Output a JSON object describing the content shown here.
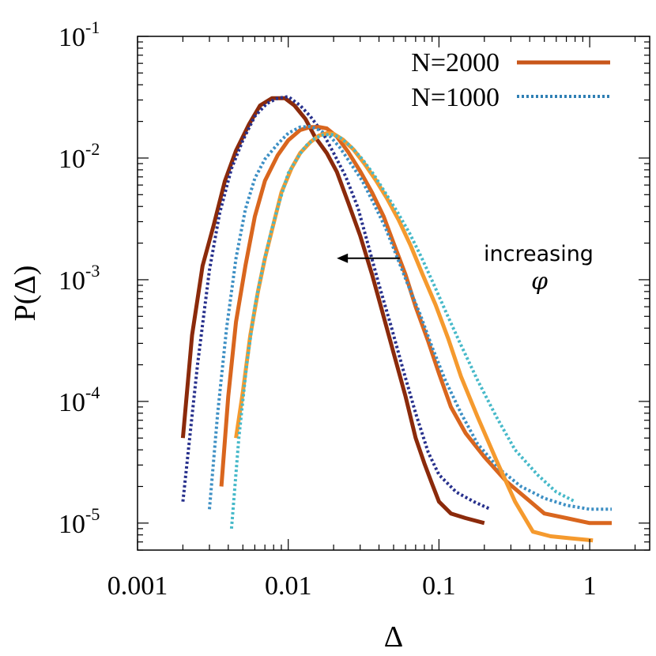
{
  "chart_data": {
    "type": "line",
    "xscale": "log",
    "yscale": "log",
    "xlim": [
      0.001,
      2.5
    ],
    "ylim": [
      6e-06,
      0.1
    ],
    "xlabel": "Δ",
    "ylabel": "P(Δ)",
    "x_tick_labels": [
      {
        "value": 0.001,
        "label": "0.001"
      },
      {
        "value": 0.01,
        "label": "0.01"
      },
      {
        "value": 0.1,
        "label": "0.1"
      },
      {
        "value": 1,
        "label": "1"
      }
    ],
    "y_tick_labels": [
      {
        "value": 1e-05,
        "base": "10",
        "exp": "-5"
      },
      {
        "value": 0.0001,
        "base": "10",
        "exp": "-4"
      },
      {
        "value": 0.001,
        "base": "10",
        "exp": "-3"
      },
      {
        "value": 0.01,
        "base": "10",
        "exp": "-2"
      },
      {
        "value": 0.1,
        "base": "10",
        "exp": "-1"
      }
    ],
    "legend": [
      {
        "label": "N=2000",
        "style": "solid",
        "color": "#c8561a"
      },
      {
        "label": "N=1000",
        "style": "dotted",
        "color": "#2f7fb4"
      }
    ],
    "legend_position": "top-right",
    "annotation": {
      "text": "increasing",
      "symbol": "φ",
      "arrow_from": 0.055,
      "arrow_to": 0.021,
      "arrow_y": 0.0015
    },
    "series": [
      {
        "name": "N=2000 (highest φ)",
        "style": "solid",
        "color": "#8b2a0b",
        "width": 5,
        "x": [
          0.002,
          0.0023,
          0.0027,
          0.0032,
          0.0038,
          0.0045,
          0.0055,
          0.0065,
          0.0078,
          0.0095,
          0.011,
          0.013,
          0.015,
          0.018,
          0.021,
          0.025,
          0.03,
          0.036,
          0.042,
          0.05,
          0.06,
          0.07,
          0.08,
          0.09,
          0.1,
          0.12,
          0.15,
          0.2
        ],
        "y": [
          5e-05,
          0.00035,
          0.0013,
          0.0028,
          0.0065,
          0.0115,
          0.019,
          0.027,
          0.031,
          0.031,
          0.027,
          0.021,
          0.015,
          0.011,
          0.0077,
          0.0043,
          0.0023,
          0.0011,
          0.00055,
          0.00025,
          0.00011,
          5e-05,
          3.1e-05,
          2.1e-05,
          1.5e-05,
          1.2e-05,
          1.1e-05,
          1e-05
        ]
      },
      {
        "name": "N=1000 (highest φ)",
        "style": "dotted",
        "color": "#27308c",
        "width": 4,
        "x": [
          0.002,
          0.0025,
          0.003,
          0.0035,
          0.0042,
          0.005,
          0.006,
          0.0072,
          0.0085,
          0.01,
          0.012,
          0.014,
          0.017,
          0.02,
          0.024,
          0.029,
          0.034,
          0.04,
          0.048,
          0.058,
          0.07,
          0.085,
          0.1,
          0.13,
          0.17,
          0.22
        ],
        "y": [
          1.5e-05,
          0.0002,
          0.0012,
          0.0035,
          0.0082,
          0.014,
          0.022,
          0.028,
          0.031,
          0.032,
          0.027,
          0.022,
          0.016,
          0.011,
          0.0071,
          0.0039,
          0.0019,
          0.00091,
          0.00042,
          0.00018,
          8e-05,
          3.8e-05,
          2.5e-05,
          1.8e-05,
          1.5e-05,
          1.3e-05
        ]
      },
      {
        "name": "N=2000 (mid φ)",
        "style": "solid",
        "color": "#d9661e",
        "width": 5,
        "x": [
          0.0036,
          0.004,
          0.0045,
          0.0052,
          0.006,
          0.007,
          0.0085,
          0.01,
          0.012,
          0.014,
          0.016,
          0.018,
          0.021,
          0.025,
          0.03,
          0.036,
          0.043,
          0.05,
          0.06,
          0.07,
          0.085,
          0.1,
          0.12,
          0.15,
          0.2,
          0.28,
          0.38,
          0.5,
          0.7,
          1.0,
          1.4
        ],
        "y": [
          2e-05,
          0.00011,
          0.00045,
          0.0013,
          0.0033,
          0.0065,
          0.0105,
          0.014,
          0.017,
          0.018,
          0.018,
          0.0175,
          0.015,
          0.0112,
          0.0078,
          0.0052,
          0.0033,
          0.002,
          0.0011,
          0.0006,
          0.00031,
          0.00017,
          9e-05,
          5.5e-05,
          3.5e-05,
          2.2e-05,
          1.6e-05,
          1.2e-05,
          1.1e-05,
          1e-05,
          1e-05
        ]
      },
      {
        "name": "N=1000 (mid φ)",
        "style": "dotted",
        "color": "#3d8fc4",
        "width": 4,
        "x": [
          0.003,
          0.0034,
          0.0039,
          0.0045,
          0.0052,
          0.006,
          0.007,
          0.0085,
          0.01,
          0.012,
          0.014,
          0.016,
          0.019,
          0.022,
          0.026,
          0.031,
          0.037,
          0.044,
          0.052,
          0.062,
          0.075,
          0.09,
          0.11,
          0.14,
          0.18,
          0.25,
          0.35,
          0.5,
          0.7,
          1.0,
          1.4
        ],
        "y": [
          1.3e-05,
          8e-05,
          0.0004,
          0.0015,
          0.0038,
          0.0068,
          0.0098,
          0.013,
          0.016,
          0.018,
          0.0182,
          0.017,
          0.015,
          0.0122,
          0.009,
          0.0065,
          0.0042,
          0.0027,
          0.0016,
          0.00092,
          0.00052,
          0.00028,
          0.00015,
          8e-05,
          4.5e-05,
          2.8e-05,
          2e-05,
          1.6e-05,
          1.4e-05,
          1.3e-05,
          1.3e-05
        ]
      },
      {
        "name": "N=2000 (lowest φ)",
        "style": "solid",
        "color": "#f59a2e",
        "width": 5,
        "x": [
          0.0045,
          0.005,
          0.0056,
          0.0063,
          0.007,
          0.008,
          0.009,
          0.0105,
          0.012,
          0.014,
          0.016,
          0.018,
          0.02,
          0.023,
          0.027,
          0.032,
          0.038,
          0.045,
          0.054,
          0.065,
          0.078,
          0.095,
          0.115,
          0.14,
          0.18,
          0.24,
          0.32,
          0.42,
          0.55,
          0.75,
          1.05
        ],
        "y": [
          5e-05,
          0.00012,
          0.00035,
          0.0008,
          0.0015,
          0.0029,
          0.0052,
          0.0082,
          0.011,
          0.0135,
          0.0153,
          0.016,
          0.0158,
          0.0142,
          0.0118,
          0.009,
          0.0066,
          0.0047,
          0.0031,
          0.0019,
          0.0011,
          0.00062,
          0.00033,
          0.00016,
          7.5e-05,
          3.3e-05,
          1.5e-05,
          8.5e-06,
          7.8e-06,
          7.5e-06,
          7.2e-06
        ]
      },
      {
        "name": "N=1000 (lowest φ)",
        "style": "dotted",
        "color": "#46b9c9",
        "width": 4,
        "x": [
          0.0042,
          0.0047,
          0.0053,
          0.006,
          0.0068,
          0.0077,
          0.0088,
          0.01,
          0.0115,
          0.013,
          0.015,
          0.017,
          0.0195,
          0.022,
          0.026,
          0.031,
          0.037,
          0.044,
          0.053,
          0.064,
          0.077,
          0.093,
          0.113,
          0.14,
          0.18,
          0.24,
          0.32,
          0.45,
          0.6,
          0.8
        ],
        "y": [
          9e-06,
          5e-05,
          0.0002,
          0.0006,
          0.0013,
          0.0025,
          0.0045,
          0.0075,
          0.01,
          0.0125,
          0.0145,
          0.0155,
          0.0156,
          0.0148,
          0.0125,
          0.0098,
          0.0073,
          0.0052,
          0.0036,
          0.0024,
          0.0015,
          0.0009,
          0.00052,
          0.00029,
          0.00015,
          7.5e-05,
          4e-05,
          2.5e-05,
          1.8e-05,
          1.5e-05
        ]
      }
    ]
  }
}
